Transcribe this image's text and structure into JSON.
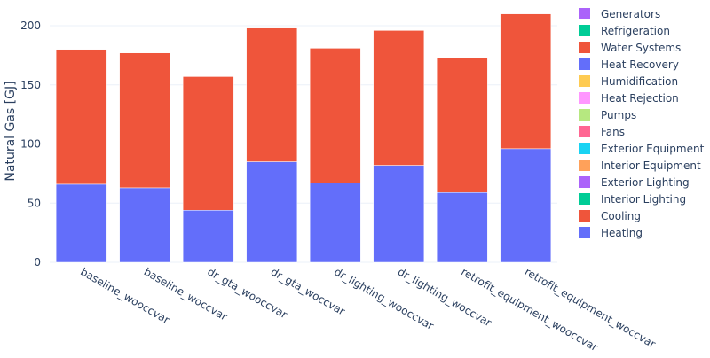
{
  "chart_data": {
    "type": "bar",
    "stacked": true,
    "ylabel": "Natural Gas [GJ]",
    "xlabel": "",
    "ylim": [
      0,
      215
    ],
    "yticks": [
      0,
      50,
      100,
      150,
      200
    ],
    "grid": true,
    "legend_position": "right",
    "categories": [
      "baseline_wooccvar",
      "baseline_woccvar",
      "dr_gta_wooccvar",
      "dr_gta_woccvar",
      "dr_lighting_wooccvar",
      "dr_lighting_woccvar",
      "retrofit_equipment_wooccvar",
      "retrofit_equipment_woccvar"
    ],
    "series": [
      {
        "name": "Heating",
        "color": "#636efa",
        "values": [
          66,
          63,
          44,
          85,
          67,
          82,
          59,
          96
        ]
      },
      {
        "name": "Cooling",
        "color": "#ef553b",
        "values": [
          114,
          114,
          113,
          113,
          114,
          114,
          114,
          114
        ]
      }
    ],
    "legend": [
      {
        "name": "Generators",
        "color": "#ab63fa"
      },
      {
        "name": "Refrigeration",
        "color": "#00cc96"
      },
      {
        "name": "Water Systems",
        "color": "#ef553b"
      },
      {
        "name": "Heat Recovery",
        "color": "#636efa"
      },
      {
        "name": "Humidification",
        "color": "#fecb52"
      },
      {
        "name": "Heat Rejection",
        "color": "#ff97ff"
      },
      {
        "name": "Pumps",
        "color": "#b6e880"
      },
      {
        "name": "Fans",
        "color": "#ff6692"
      },
      {
        "name": "Exterior Equipment",
        "color": "#19d3f3"
      },
      {
        "name": "Interior Equipment",
        "color": "#ffa15a"
      },
      {
        "name": "Exterior Lighting",
        "color": "#ab63fa"
      },
      {
        "name": "Interior Lighting",
        "color": "#00cc96"
      },
      {
        "name": "Cooling",
        "color": "#ef553b"
      },
      {
        "name": "Heating",
        "color": "#636efa"
      }
    ]
  }
}
